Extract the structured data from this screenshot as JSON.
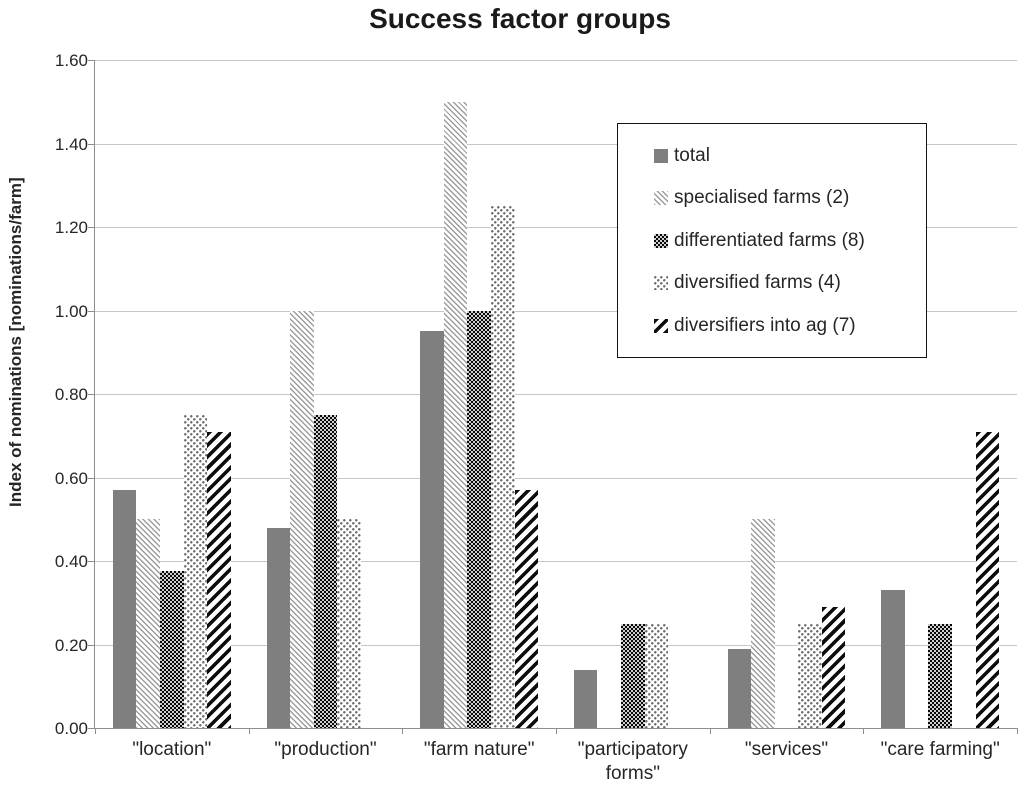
{
  "chart_data": {
    "type": "bar",
    "title": "Success factor groups",
    "xlabel": "",
    "ylabel": "Index of nominations [nominations/farm]",
    "ylim": [
      0,
      1.6
    ],
    "ytick_step": 0.2,
    "yticks": [
      "0.00",
      "0.20",
      "0.40",
      "0.60",
      "0.80",
      "1.00",
      "1.20",
      "1.40",
      "1.60"
    ],
    "grid": true,
    "legend_position": "inside-upper-right",
    "categories": [
      "\"location\"",
      "\"production\"",
      "\"farm nature\"",
      "\"participatory forms\"",
      "\"services\"",
      "\"care farming\""
    ],
    "series": [
      {
        "name": "total",
        "pattern": "solid-gray",
        "values": [
          0.57,
          0.48,
          0.95,
          0.14,
          0.19,
          0.33
        ]
      },
      {
        "name": "specialised farms (2)",
        "pattern": "fine-diagonal-hatch",
        "values": [
          0.5,
          1.0,
          1.5,
          0,
          0.5,
          0
        ]
      },
      {
        "name": "differentiated farms (8)",
        "pattern": "black-with-white-dots",
        "values": [
          0.375,
          0.75,
          1.0,
          0.25,
          0,
          0.25
        ]
      },
      {
        "name": "diversified farms (4)",
        "pattern": "white-with-gray-dots",
        "values": [
          0.75,
          0.5,
          1.25,
          0.25,
          0.25,
          0
        ]
      },
      {
        "name": "diversifiers into ag (7)",
        "pattern": "bold-diagonal-stripes",
        "values": [
          0.71,
          0,
          0.57,
          0,
          0.29,
          0.71
        ]
      }
    ]
  },
  "colors": {
    "total_bar": "#7f7f7f",
    "hatch_gray": "#9d9d9d",
    "pattern_black": "#0d0d0d",
    "grid_line": "#c6c6c6",
    "axis_line": "#8e8e8e",
    "text": "#262626",
    "legend_border": "#141414",
    "background": "#ffffff"
  }
}
